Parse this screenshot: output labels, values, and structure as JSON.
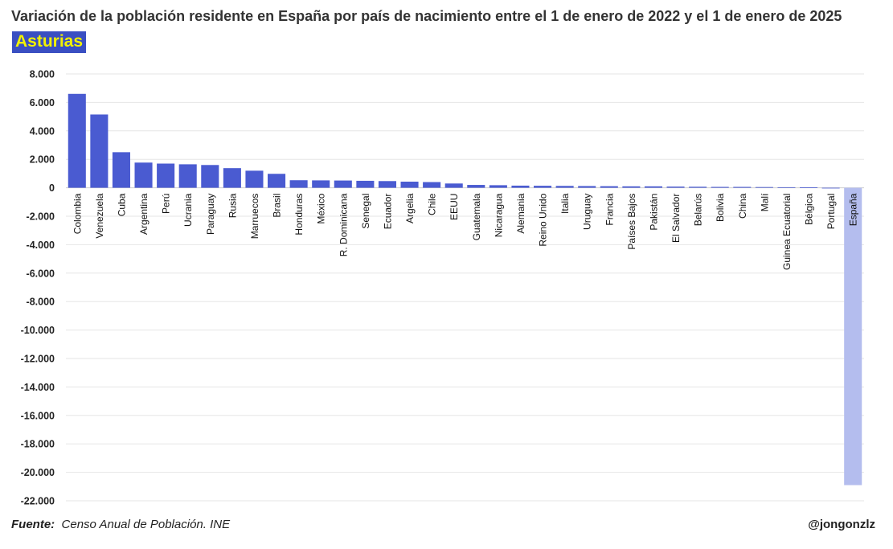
{
  "title": "Variación de la población residente en España por país de nacimiento entre el 1 de enero de 2022 y el 1 de enero de 2025",
  "region": "Asturias",
  "footer": {
    "source_label": "Fuente:",
    "source_text": "Censo Anual de Población. INE",
    "handle": "@jongonzlz"
  },
  "colors": {
    "bar": "#4a5bd1",
    "bar_highlight": "#b4bdee",
    "grid": "#e6e6e6"
  },
  "chart_data": {
    "type": "bar",
    "title": "Variación de la población residente en España por país de nacimiento entre el 1 de enero de 2022 y el 1 de enero de 2025",
    "subtitle": "Asturias",
    "xlabel": "",
    "ylabel": "",
    "ylim": [
      -22000,
      8000
    ],
    "yticks": [
      8000,
      6000,
      4000,
      2000,
      0,
      -2000,
      -4000,
      -6000,
      -8000,
      -10000,
      -12000,
      -14000,
      -16000,
      -18000,
      -20000,
      -22000
    ],
    "ytick_labels": [
      "8.000",
      "6.000",
      "4.000",
      "2.000",
      "0",
      "-2.000",
      "-4.000",
      "-6.000",
      "-8.000",
      "-10.000",
      "-12.000",
      "-14.000",
      "-16.000",
      "-18.000",
      "-20.000",
      "-22.000"
    ],
    "grid": true,
    "highlight": "España",
    "categories": [
      "Colombia",
      "Venezuela",
      "Cuba",
      "Argentina",
      "Perú",
      "Ucrania",
      "Paraguay",
      "Rusia",
      "Marruecos",
      "Brasil",
      "Honduras",
      "México",
      "R. Dominicana",
      "Senegal",
      "Ecuador",
      "Argelia",
      "Chile",
      "EEUU",
      "Guatemala",
      "Nicaragua",
      "Alemania",
      "Reino Unido",
      "Italia",
      "Uruguay",
      "Francia",
      "Países Bajos",
      "Pakistán",
      "El Salvador",
      "Belarús",
      "Bolivia",
      "China",
      "Malí",
      "Guinea Ecuatorial",
      "Bélgica",
      "Portugal",
      "España"
    ],
    "values": [
      6600,
      5150,
      2500,
      1770,
      1700,
      1650,
      1600,
      1380,
      1200,
      980,
      530,
      520,
      510,
      490,
      470,
      430,
      400,
      300,
      200,
      180,
      150,
      140,
      130,
      120,
      110,
      100,
      100,
      80,
      70,
      60,
      60,
      50,
      40,
      30,
      -40,
      -20900
    ]
  }
}
